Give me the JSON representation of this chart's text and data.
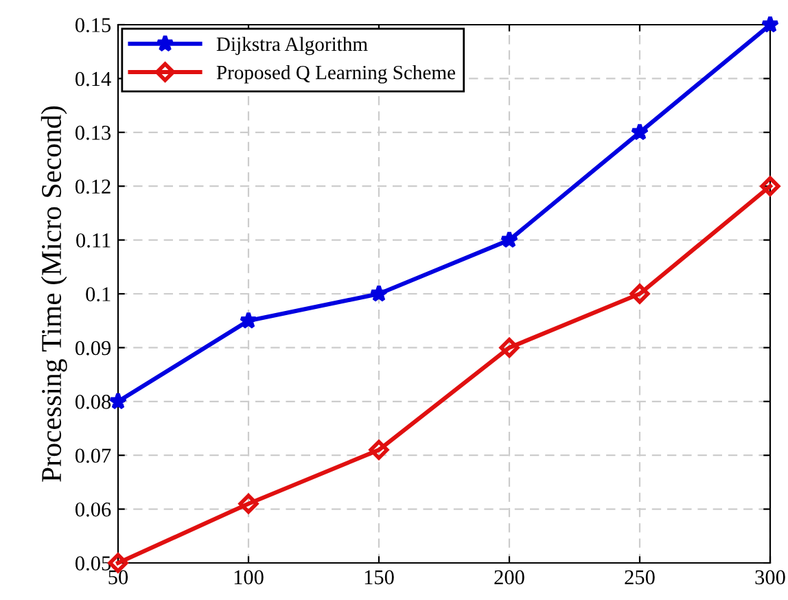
{
  "chart_data": {
    "type": "line",
    "ylabel": "Processing Time (Micro Second)",
    "x": [
      50,
      100,
      150,
      200,
      250,
      300
    ],
    "series": [
      {
        "name": "Dijkstra Algorithm",
        "color": "#0000e0",
        "marker": "star",
        "values": [
          0.08,
          0.095,
          0.1,
          0.11,
          0.13,
          0.15
        ]
      },
      {
        "name": "Proposed Q Learning Scheme",
        "color": "#e01010",
        "marker": "diamond",
        "values": [
          0.05,
          0.061,
          0.071,
          0.09,
          0.1,
          0.12
        ]
      }
    ],
    "xlim": [
      50,
      300
    ],
    "xticks": [
      50,
      100,
      150,
      200,
      250,
      300
    ],
    "ylim": [
      0.05,
      0.15
    ],
    "yticks": [
      0.05,
      0.06,
      0.07,
      0.08,
      0.09,
      0.1,
      0.11,
      0.12,
      0.13,
      0.14,
      0.15
    ],
    "grid": true,
    "legend": "top left",
    "line_style": "solid"
  }
}
